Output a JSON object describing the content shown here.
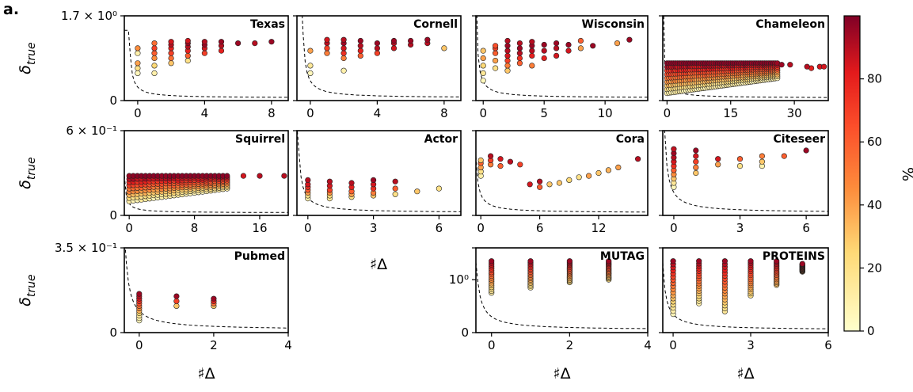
{
  "figure": {
    "panel_label": "a.",
    "colorbar": {
      "label": "%",
      "ticks": [
        0,
        20,
        40,
        60,
        80
      ],
      "min": 0,
      "max": 100
    }
  },
  "row_axes": [
    {
      "ylabel_main": "δ",
      "ylabel_sub": "true",
      "ytick_top": "1.7 × 10⁰",
      "ytick_zero": "0"
    },
    {
      "ylabel_main": "δ",
      "ylabel_sub": "true",
      "ytick_top": "6 × 10⁻¹",
      "ytick_zero": "0"
    },
    {
      "ylabel_main": "δ",
      "ylabel_sub": "true",
      "ytick_top": "3.5 × 10⁻¹",
      "ytick_zero": "0"
    }
  ],
  "chart_data": [
    {
      "type": "scatter",
      "title": "Texas",
      "xlabel": "",
      "xlim": [
        -0.8,
        9
      ],
      "ylim": [
        0,
        1.7
      ],
      "xticks": [
        0,
        4,
        8
      ],
      "ytick_labels": [
        "1.7 × 10⁰",
        "0"
      ],
      "curve_k": 0.7,
      "series": [
        {
          "x": 0,
          "y": [
            0.55,
            0.65,
            0.75,
            0.95,
            1.05
          ],
          "c": [
            5,
            20,
            40,
            10,
            45
          ]
        },
        {
          "x": 1,
          "y": [
            0.55,
            0.7,
            0.85,
            0.95,
            1.05,
            1.15
          ],
          "c": [
            10,
            25,
            45,
            60,
            70,
            55
          ]
        },
        {
          "x": 2,
          "y": [
            0.75,
            0.85,
            0.95,
            1.05,
            1.12,
            1.18
          ],
          "c": [
            30,
            55,
            70,
            80,
            90,
            85
          ]
        },
        {
          "x": 3,
          "y": [
            0.8,
            0.9,
            1.0,
            1.08,
            1.15,
            1.2
          ],
          "c": [
            20,
            60,
            80,
            90,
            95,
            85
          ]
        },
        {
          "x": 4,
          "y": [
            0.95,
            1.05,
            1.12,
            1.18
          ],
          "c": [
            70,
            85,
            95,
            90
          ]
        },
        {
          "x": 5,
          "y": [
            1.0,
            1.1,
            1.18
          ],
          "c": [
            80,
            90,
            95
          ]
        },
        {
          "x": 6,
          "y": [
            1.15
          ],
          "c": [
            95
          ]
        },
        {
          "x": 7,
          "y": [
            1.15
          ],
          "c": [
            90
          ]
        },
        {
          "x": 8,
          "y": [
            1.18
          ],
          "c": [
            95
          ]
        }
      ]
    },
    {
      "type": "scatter",
      "title": "Cornell",
      "xlabel": "",
      "xlim": [
        -0.8,
        9
      ],
      "ylim": [
        0,
        1.7
      ],
      "xticks": [
        0,
        4,
        8
      ],
      "ytick_labels": [],
      "curve_k": 1.1,
      "series": [
        {
          "x": 0,
          "y": [
            0.55,
            0.7,
            1.0
          ],
          "c": [
            5,
            15,
            40
          ]
        },
        {
          "x": 1,
          "y": [
            0.95,
            1.05,
            1.15,
            1.22
          ],
          "c": [
            50,
            70,
            90,
            85
          ]
        },
        {
          "x": 2,
          "y": [
            0.6,
            0.85,
            0.95,
            1.05,
            1.15,
            1.22
          ],
          "c": [
            10,
            50,
            75,
            85,
            95,
            90
          ]
        },
        {
          "x": 3,
          "y": [
            0.9,
            1.0,
            1.1,
            1.2
          ],
          "c": [
            60,
            80,
            90,
            95
          ]
        },
        {
          "x": 4,
          "y": [
            0.95,
            1.05,
            1.15
          ],
          "c": [
            70,
            90,
            95
          ]
        },
        {
          "x": 5,
          "y": [
            1.05,
            1.15,
            1.2
          ],
          "c": [
            85,
            90,
            95
          ]
        },
        {
          "x": 6,
          "y": [
            1.12,
            1.2
          ],
          "c": [
            90,
            95
          ]
        },
        {
          "x": 7,
          "y": [
            1.15,
            1.22
          ],
          "c": [
            90,
            95
          ]
        },
        {
          "x": 8,
          "y": [
            1.05
          ],
          "c": [
            30
          ]
        }
      ]
    },
    {
      "type": "scatter",
      "title": "Wisconsin",
      "xlabel": "",
      "xlim": [
        -0.6,
        13.5
      ],
      "ylim": [
        0,
        1.7
      ],
      "xticks": [
        0,
        5,
        10
      ],
      "ytick_labels": [],
      "curve_k": 1.2,
      "series": [
        {
          "x": 0,
          "y": [
            0.4,
            0.55,
            0.7,
            0.85,
            1.0
          ],
          "c": [
            5,
            15,
            25,
            40,
            30
          ]
        },
        {
          "x": 1,
          "y": [
            0.65,
            0.8,
            0.95,
            1.05,
            1.1
          ],
          "c": [
            20,
            40,
            60,
            70,
            65
          ]
        },
        {
          "x": 2,
          "y": [
            0.6,
            0.7,
            0.8,
            0.9,
            1.0,
            1.1,
            1.2
          ],
          "c": [
            30,
            50,
            70,
            85,
            90,
            95,
            90
          ]
        },
        {
          "x": 3,
          "y": [
            0.75,
            0.85,
            0.95,
            1.05,
            1.15
          ],
          "c": [
            60,
            75,
            90,
            95,
            90
          ]
        },
        {
          "x": 4,
          "y": [
            0.7,
            0.9,
            1.0,
            1.1,
            1.18
          ],
          "c": [
            50,
            80,
            90,
            95,
            90
          ]
        },
        {
          "x": 5,
          "y": [
            0.85,
            1.0,
            1.12
          ],
          "c": [
            80,
            90,
            95
          ]
        },
        {
          "x": 6,
          "y": [
            0.9,
            1.05,
            1.15
          ],
          "c": [
            85,
            90,
            95
          ]
        },
        {
          "x": 7,
          "y": [
            1.0,
            1.12
          ],
          "c": [
            85,
            95
          ]
        },
        {
          "x": 8,
          "y": [
            1.05,
            1.2
          ],
          "c": [
            40,
            60
          ]
        },
        {
          "x": 9,
          "y": [
            1.1
          ],
          "c": [
            95
          ]
        },
        {
          "x": 11,
          "y": [
            1.15
          ],
          "c": [
            40
          ]
        },
        {
          "x": 12,
          "y": [
            1.22
          ],
          "c": [
            95
          ]
        }
      ]
    },
    {
      "type": "scatter",
      "title": "Chameleon",
      "xlabel": "",
      "xlim": [
        -1,
        38
      ],
      "ylim": [
        0,
        1.7
      ],
      "xticks": [
        0,
        15,
        30
      ],
      "ytick_labels": [],
      "curve_k": 2.4,
      "dense": true,
      "series": [
        {
          "x": 36,
          "y": [
            0.68
          ],
          "c": [
            85
          ]
        },
        {
          "x": 37,
          "y": [
            0.68
          ],
          "c": [
            85
          ]
        },
        {
          "x": 34,
          "y": [
            0.65
          ],
          "c": [
            80
          ]
        },
        {
          "x": 33,
          "y": [
            0.68
          ],
          "c": [
            90
          ]
        },
        {
          "x": 29,
          "y": [
            0.72
          ],
          "c": [
            90
          ]
        },
        {
          "x": 27,
          "y": [
            0.72
          ],
          "c": [
            95
          ]
        }
      ]
    },
    {
      "type": "scatter",
      "title": "Squirrel",
      "xlabel": "",
      "xlim": [
        -0.6,
        19.5
      ],
      "ylim": [
        0,
        0.6
      ],
      "xticks": [
        0,
        8,
        16
      ],
      "ytick_labels": [
        "6 × 10⁻¹",
        "0"
      ],
      "curve_k": 0.8,
      "dense": true,
      "series": [
        {
          "x": 14,
          "y": [
            0.28
          ],
          "c": [
            85
          ]
        },
        {
          "x": 16,
          "y": [
            0.28
          ],
          "c": [
            90
          ]
        },
        {
          "x": 19,
          "y": [
            0.28
          ],
          "c": [
            90
          ]
        }
      ]
    },
    {
      "type": "scatter",
      "title": "Actor",
      "xlabel": "",
      "xlim": [
        -0.5,
        7
      ],
      "ylim": [
        0,
        0.6
      ],
      "xticks": [
        0,
        3,
        6
      ],
      "ytick_labels": [],
      "curve_k": 0.9,
      "series": [
        {
          "x": 0,
          "y": [
            0.12,
            0.14,
            0.16,
            0.18,
            0.2,
            0.22,
            0.25
          ],
          "c": [
            10,
            20,
            40,
            60,
            75,
            85,
            90
          ]
        },
        {
          "x": 1,
          "y": [
            0.12,
            0.14,
            0.16,
            0.18,
            0.21,
            0.24
          ],
          "c": [
            15,
            25,
            45,
            70,
            85,
            90
          ]
        },
        {
          "x": 2,
          "y": [
            0.13,
            0.15,
            0.17,
            0.2,
            0.23
          ],
          "c": [
            20,
            40,
            60,
            80,
            90
          ]
        },
        {
          "x": 3,
          "y": [
            0.14,
            0.16,
            0.19,
            0.22,
            0.25
          ],
          "c": [
            30,
            50,
            75,
            85,
            95
          ]
        },
        {
          "x": 4,
          "y": [
            0.15,
            0.19,
            0.24
          ],
          "c": [
            20,
            60,
            90
          ]
        },
        {
          "x": 5,
          "y": [
            0.17
          ],
          "c": [
            30
          ]
        },
        {
          "x": 6,
          "y": [
            0.19
          ],
          "c": [
            20
          ]
        }
      ]
    },
    {
      "type": "scatter",
      "title": "Cora",
      "xlabel": "",
      "xlim": [
        -0.5,
        17
      ],
      "ylim": [
        0,
        0.6
      ],
      "xticks": [
        0,
        6,
        12
      ],
      "ytick_labels": [],
      "curve_k": 1.5,
      "series": [
        {
          "x": 0,
          "y": [
            0.28,
            0.31,
            0.34,
            0.37,
            0.39
          ],
          "c": [
            10,
            20,
            40,
            60,
            30
          ]
        },
        {
          "x": 1,
          "y": [
            0.36,
            0.39,
            0.42
          ],
          "c": [
            50,
            70,
            90
          ]
        },
        {
          "x": 2,
          "y": [
            0.35,
            0.4
          ],
          "c": [
            60,
            85
          ]
        },
        {
          "x": 3,
          "y": [
            0.38
          ],
          "c": [
            90
          ]
        },
        {
          "x": 4,
          "y": [
            0.36
          ],
          "c": [
            70
          ]
        },
        {
          "x": 5,
          "y": [
            0.22
          ],
          "c": [
            85
          ]
        },
        {
          "x": 6,
          "y": [
            0.2,
            0.24
          ],
          "c": [
            60,
            90
          ]
        },
        {
          "x": 7,
          "y": [
            0.22
          ],
          "c": [
            30
          ]
        },
        {
          "x": 8,
          "y": [
            0.23
          ],
          "c": [
            30
          ]
        },
        {
          "x": 9,
          "y": [
            0.25
          ],
          "c": [
            25
          ]
        },
        {
          "x": 10,
          "y": [
            0.27
          ],
          "c": [
            20
          ]
        },
        {
          "x": 11,
          "y": [
            0.28
          ],
          "c": [
            40
          ]
        },
        {
          "x": 12,
          "y": [
            0.3
          ],
          "c": [
            30
          ]
        },
        {
          "x": 13,
          "y": [
            0.32
          ],
          "c": [
            35
          ]
        },
        {
          "x": 14,
          "y": [
            0.34
          ],
          "c": [
            40
          ]
        },
        {
          "x": 16,
          "y": [
            0.4
          ],
          "c": [
            90
          ]
        }
      ]
    },
    {
      "type": "scatter",
      "title": "Citeseer",
      "xlabel": "",
      "xlim": [
        -0.5,
        7
      ],
      "ylim": [
        0,
        0.6
      ],
      "xticks": [
        0,
        3,
        6
      ],
      "ytick_labels": [],
      "curve_k": 1.2,
      "series": [
        {
          "x": 0,
          "y": [
            0.2,
            0.23,
            0.26,
            0.29,
            0.32,
            0.35,
            0.38,
            0.41,
            0.44,
            0.47
          ],
          "c": [
            5,
            15,
            30,
            45,
            60,
            75,
            85,
            90,
            95,
            88
          ]
        },
        {
          "x": 1,
          "y": [
            0.3,
            0.34,
            0.38,
            0.42,
            0.46
          ],
          "c": [
            30,
            50,
            70,
            85,
            95
          ]
        },
        {
          "x": 2,
          "y": [
            0.36,
            0.4
          ],
          "c": [
            40,
            85
          ]
        },
        {
          "x": 3,
          "y": [
            0.35,
            0.4
          ],
          "c": [
            20,
            60
          ]
        },
        {
          "x": 4,
          "y": [
            0.35,
            0.38,
            0.42
          ],
          "c": [
            10,
            30,
            50
          ]
        },
        {
          "x": 5,
          "y": [
            0.42
          ],
          "c": [
            60
          ]
        },
        {
          "x": 6,
          "y": [
            0.46
          ],
          "c": [
            95
          ]
        }
      ]
    },
    {
      "type": "scatter",
      "title": "Pubmed",
      "xlabel": "♯Δ",
      "xlim": [
        -0.4,
        4
      ],
      "ylim": [
        0,
        0.35
      ],
      "xticks": [
        0,
        2,
        4
      ],
      "ytick_labels": [
        "3.5 × 10⁻¹",
        "0"
      ],
      "curve_k": 1.0,
      "series": [
        {
          "x": 0,
          "y": [
            0.05,
            0.06,
            0.07,
            0.08,
            0.09,
            0.1,
            0.11,
            0.12,
            0.13,
            0.14,
            0.15,
            0.16
          ],
          "c": [
            5,
            10,
            15,
            25,
            35,
            45,
            55,
            65,
            75,
            85,
            90,
            95
          ]
        },
        {
          "x": 1,
          "y": [
            0.11,
            0.13,
            0.15
          ],
          "c": [
            30,
            70,
            95
          ]
        },
        {
          "x": 2,
          "y": [
            0.11,
            0.12,
            0.13,
            0.14
          ],
          "c": [
            30,
            55,
            80,
            95
          ]
        }
      ]
    },
    {
      "type": "scatter",
      "title": "MUTAG",
      "xlabel": "♯Δ",
      "xlim": [
        -0.4,
        4
      ],
      "ylim": [
        0,
        1.6
      ],
      "xticks": [
        0,
        2,
        4
      ],
      "ytick_labels": [
        "10⁰",
        "0"
      ],
      "curve_k": 0.7,
      "stacked": true,
      "series": [
        {
          "x": 0,
          "c_min": 10,
          "c_max": 95,
          "y_min": 0.75,
          "y_max": 1.35
        },
        {
          "x": 1,
          "c_min": 15,
          "c_max": 95,
          "y_min": 0.85,
          "y_max": 1.35
        },
        {
          "x": 2,
          "c_min": 20,
          "c_max": 95,
          "y_min": 0.95,
          "y_max": 1.35
        },
        {
          "x": 3,
          "c_min": 20,
          "c_max": 95,
          "y_min": 1.0,
          "y_max": 1.35
        }
      ]
    },
    {
      "type": "scatter",
      "title": "PROTEINS",
      "xlabel": "♯Δ",
      "xlim": [
        -0.4,
        6
      ],
      "ylim": [
        0,
        1.6
      ],
      "xticks": [
        0,
        3,
        6
      ],
      "ytick_labels": [],
      "curve_k": 0.9,
      "stacked": true,
      "series": [
        {
          "x": 0,
          "c_min": 5,
          "c_max": 95,
          "y_min": 0.35,
          "y_max": 1.35
        },
        {
          "x": 1,
          "c_min": 10,
          "c_max": 95,
          "y_min": 0.55,
          "y_max": 1.35
        },
        {
          "x": 2,
          "c_min": 15,
          "c_max": 95,
          "y_min": 0.4,
          "y_max": 1.35
        },
        {
          "x": 3,
          "c_min": 20,
          "c_max": 95,
          "y_min": 0.7,
          "y_max": 1.35
        },
        {
          "x": 4,
          "c_min": 30,
          "c_max": 95,
          "y_min": 0.9,
          "y_max": 1.35
        },
        {
          "x": 5,
          "c_min": 40,
          "c_max": 95,
          "y_min": 1.15,
          "y_max": 1.3
        }
      ]
    }
  ]
}
